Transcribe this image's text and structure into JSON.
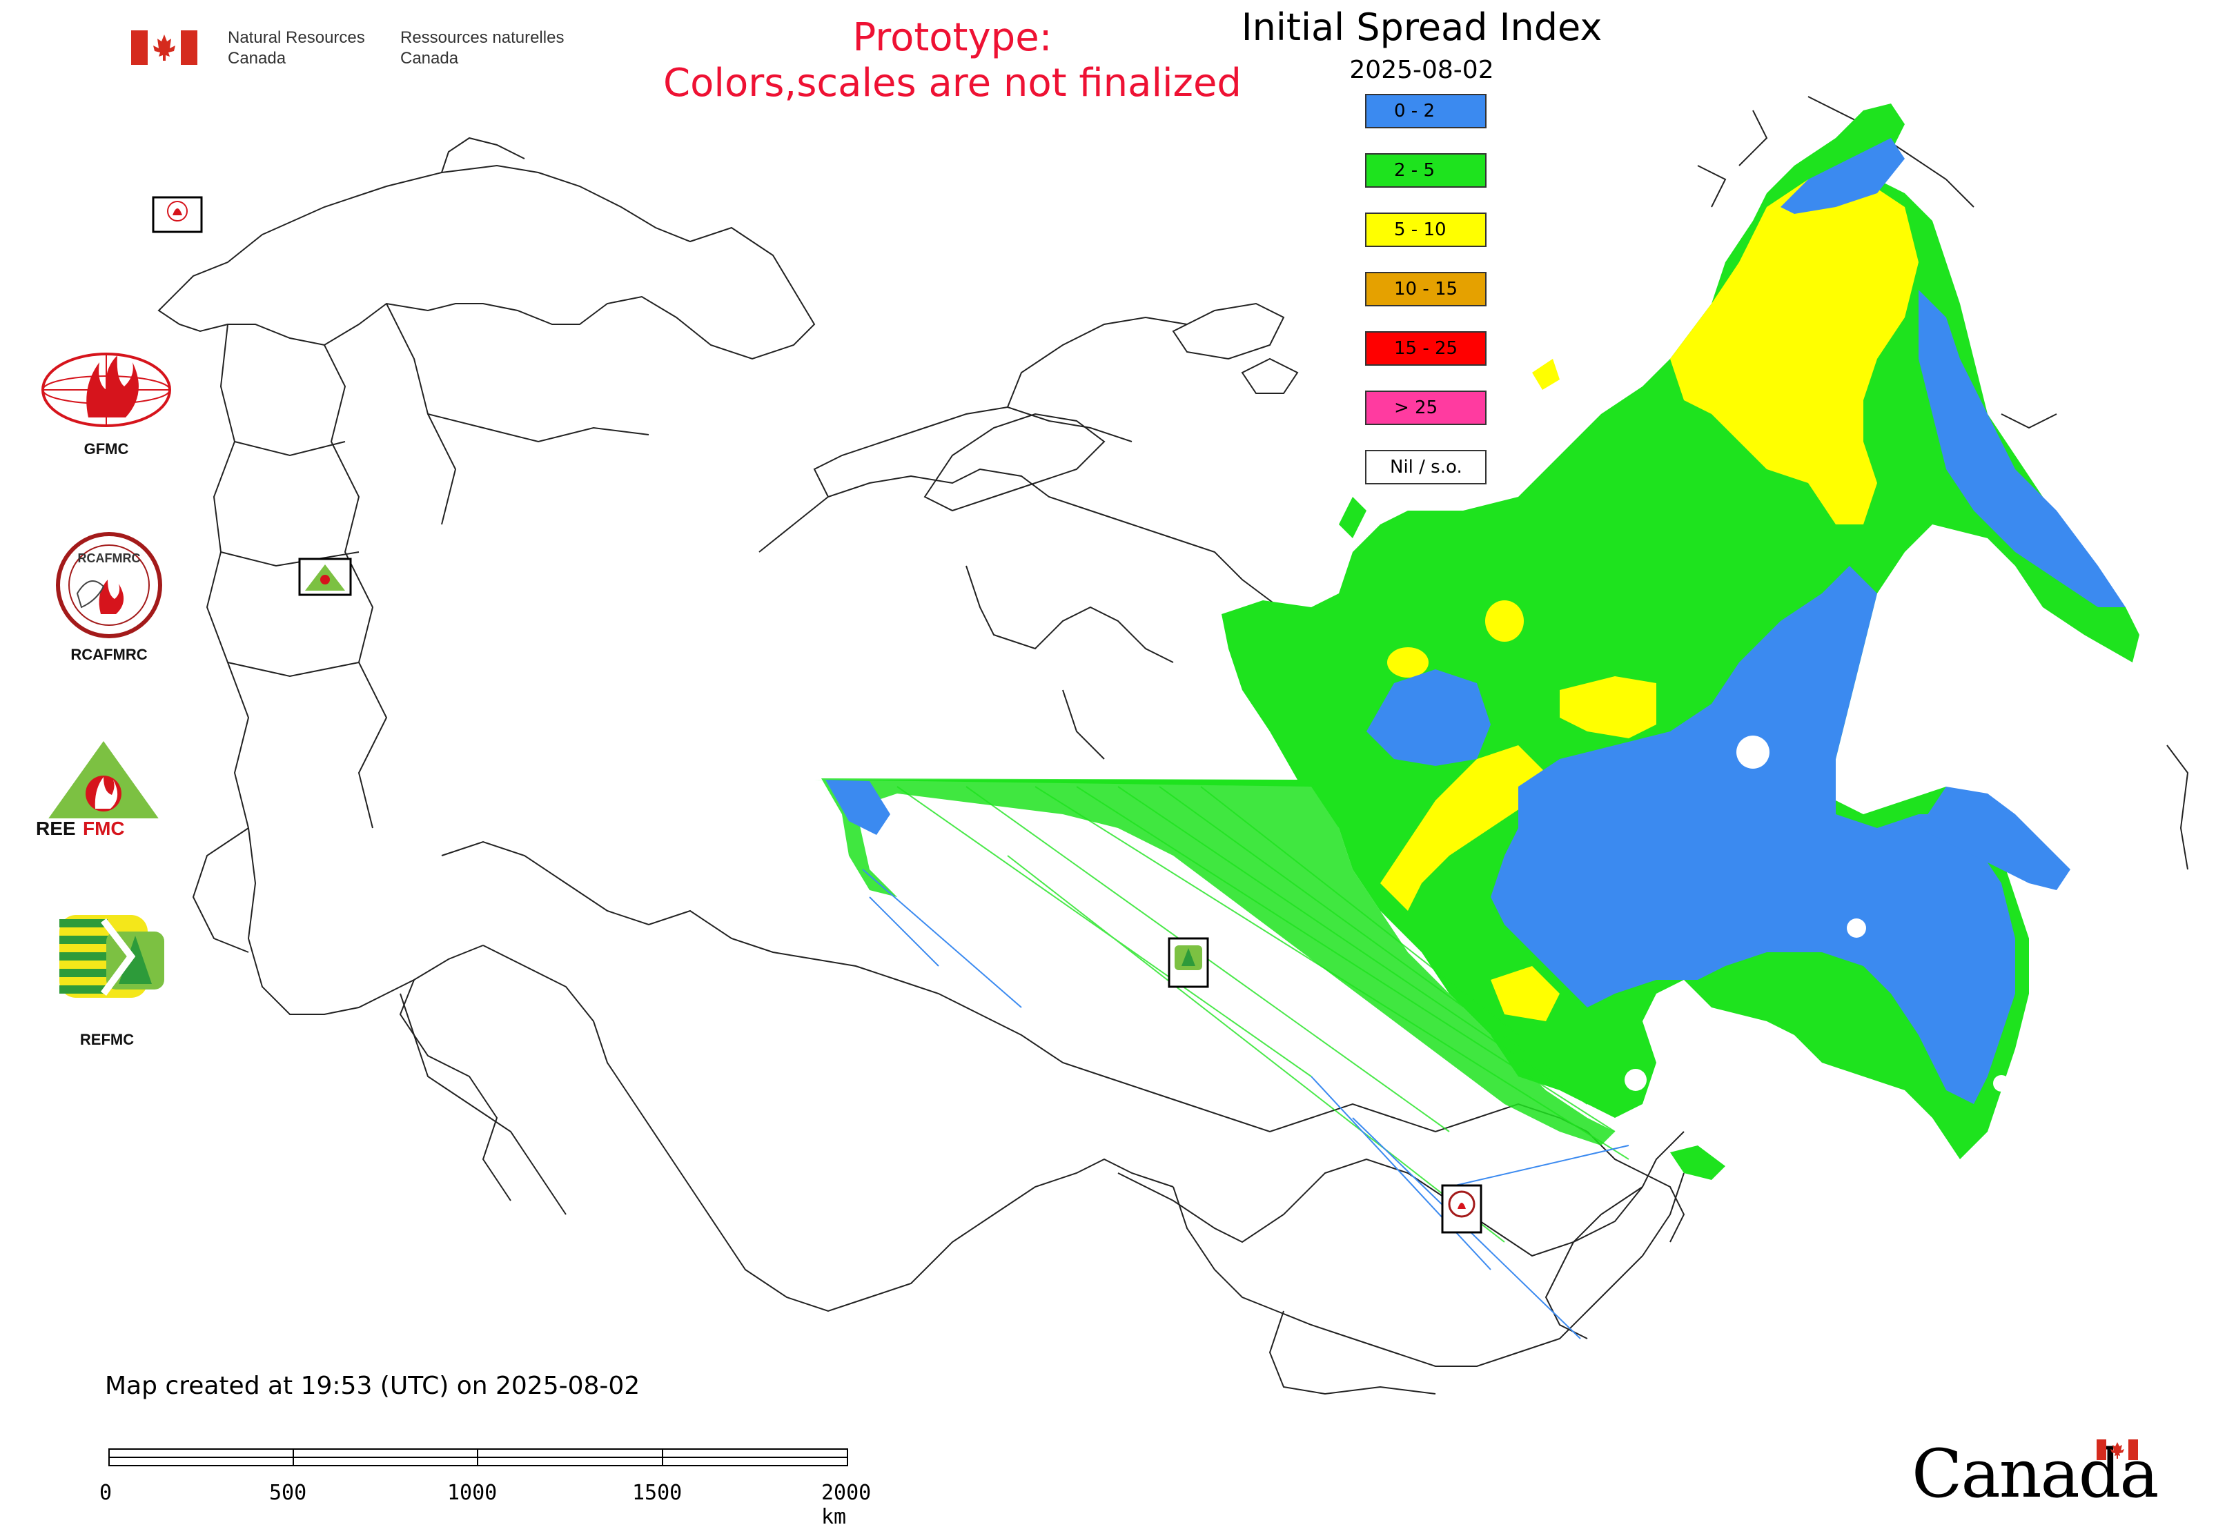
{
  "header": {
    "dept_en_line1": "Natural Resources",
    "dept_en_line2": "Canada",
    "dept_fr_line1": "Ressources naturelles",
    "dept_fr_line2": "Canada",
    "prototype_line1": "Prototype:",
    "prototype_line2": "Colors,scales are not finalized"
  },
  "map": {
    "title": "Initial Spread Index",
    "date": "2025-08-02"
  },
  "legend": {
    "items": [
      {
        "label": "0 - 2",
        "color": "#3b8af0"
      },
      {
        "label": "2 - 5",
        "color": "#1ee31e"
      },
      {
        "label": "5 - 10",
        "color": "#ffff00"
      },
      {
        "label": "10 - 15",
        "color": "#e5a100"
      },
      {
        "label": "15 - 25",
        "color": "#ff0000"
      },
      {
        "label": "> 25",
        "color": "#ff3ba0"
      },
      {
        "label": "Nil / s.o.",
        "color": "#ffffff"
      }
    ]
  },
  "logos": {
    "gfmc": "GFMC",
    "rcafmrc": "RCAFMRC",
    "reefmc": "REEFMC",
    "refmc": "REFMC",
    "rcafmrc_ring": "RCAFMRC",
    "small_gfmc": "GFMC",
    "small_refmc": "REFMC",
    "small_rcafmrc": "RCAFMRC"
  },
  "footer": {
    "created": "Map created at 19:53 (UTC) on 2025-08-02",
    "scale_ticks": [
      "0",
      "500",
      "1000",
      "1500",
      "2000 km"
    ],
    "wordmark": "Canada"
  },
  "colors": {
    "title_red": "#ee1133",
    "border": "#222222",
    "canada_red": "#d52b1e"
  }
}
